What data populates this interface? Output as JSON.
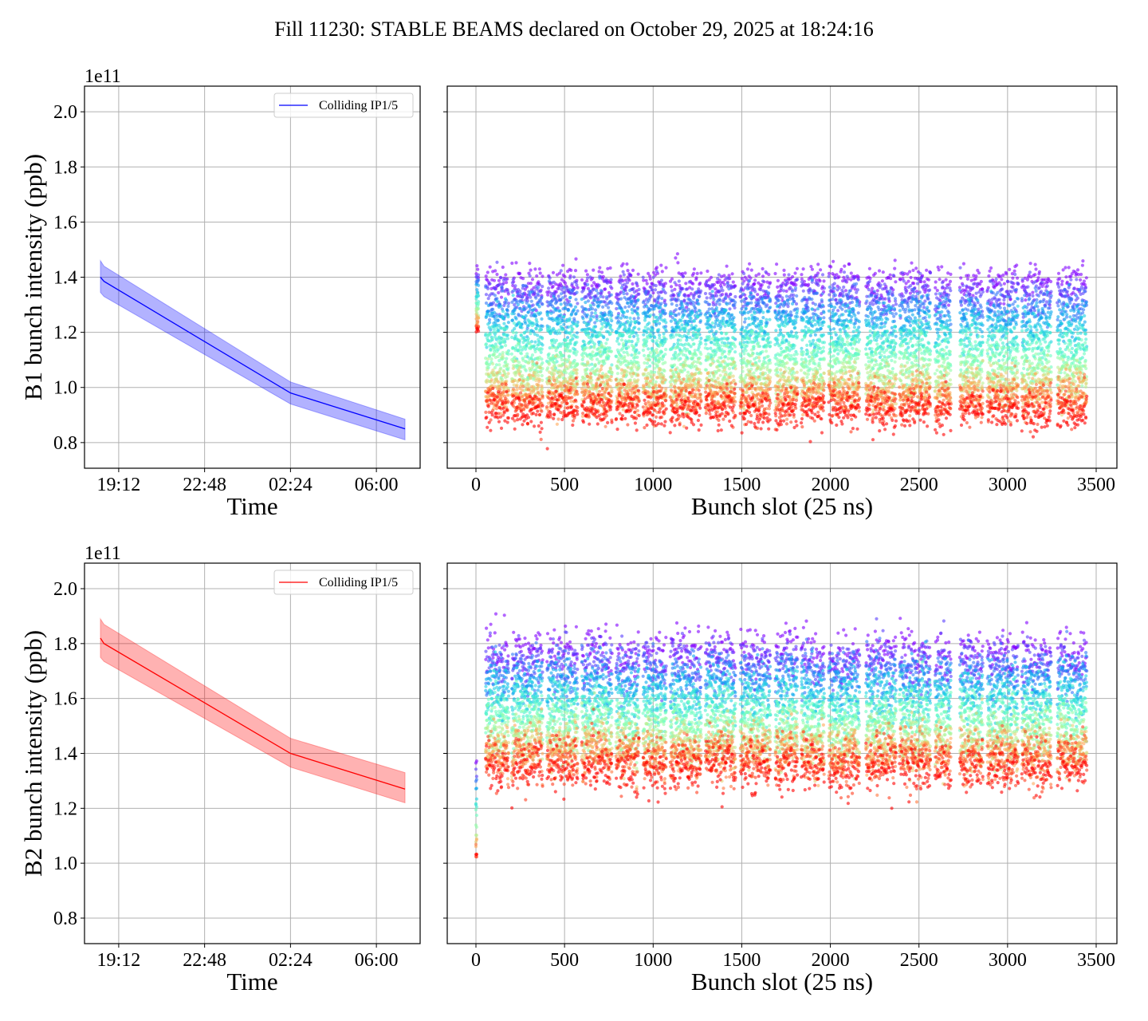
{
  "figure_title": "Fill 11230: STABLE BEAMS declared on October 29, 2025 at 18:24:16",
  "chart_data": [
    {
      "panel": "b1-time",
      "type": "line",
      "xlabel": "Time",
      "ylabel": "B1 bunch intensity (ppb)",
      "y_offset_label": "1e11",
      "xlim": [
        "17:46",
        "07:50"
      ],
      "ylim": [
        0.707,
        2.093
      ],
      "xticks": [
        "19:12",
        "22:48",
        "02:24",
        "06:00"
      ],
      "yticks": [
        0.8,
        1.0,
        1.2,
        1.4,
        1.6,
        1.8,
        2.0
      ],
      "grid": true,
      "legend": {
        "entries": [
          "Colliding IP1/5"
        ],
        "position": "upper right"
      },
      "series": [
        {
          "name": "Colliding IP1/5",
          "color": "#0000ff",
          "x": [
            "18:26",
            "18:35",
            "02:24",
            "07:12"
          ],
          "y": [
            1.4,
            1.385,
            0.98,
            0.85
          ],
          "band_upper": [
            1.46,
            1.44,
            1.02,
            0.885
          ],
          "band_lower": [
            1.345,
            1.33,
            0.94,
            0.81
          ]
        }
      ]
    },
    {
      "panel": "b1-slot",
      "type": "scatter",
      "xlabel": "Bunch slot (25 ns)",
      "xlim": [
        -162,
        3617
      ],
      "ylim": [
        0.707,
        2.093
      ],
      "xticks": [
        0,
        500,
        1000,
        1500,
        2000,
        2500,
        3000,
        3500
      ],
      "yticks": [
        0.8,
        1.0,
        1.2,
        1.4,
        1.6,
        1.8,
        2.0
      ],
      "show_ytick_labels": false,
      "grid": true,
      "colormap": "rainbow",
      "pilot": {
        "slots": [
          2,
          16
        ],
        "intensity_start": 1.42,
        "intensity_end": 1.21
      },
      "trains": [
        [
          54,
          185
        ],
        [
          202,
          377
        ],
        [
          400,
          575
        ],
        [
          597,
          768
        ],
        [
          790,
          921
        ],
        [
          943,
          1074
        ],
        [
          1096,
          1271
        ],
        [
          1294,
          1464
        ],
        [
          1491,
          1662
        ],
        [
          1688,
          1815
        ],
        [
          1835,
          1965
        ],
        [
          1990,
          2165
        ],
        [
          2200,
          2370
        ],
        [
          2390,
          2565
        ],
        [
          2590,
          2680
        ],
        [
          2730,
          2860
        ],
        [
          2885,
          3060
        ],
        [
          3080,
          3245
        ],
        [
          3280,
          3445
        ]
      ],
      "intensity_start": 1.38,
      "intensity_end": 0.915,
      "spread": 0.035
    },
    {
      "panel": "b2-time",
      "type": "line",
      "xlabel": "Time",
      "ylabel": "B2 bunch intensity (ppb)",
      "y_offset_label": "1e11",
      "xlim": [
        "17:46",
        "07:50"
      ],
      "ylim": [
        0.707,
        2.093
      ],
      "xticks": [
        "19:12",
        "22:48",
        "02:24",
        "06:00"
      ],
      "yticks": [
        0.8,
        1.0,
        1.2,
        1.4,
        1.6,
        1.8,
        2.0
      ],
      "grid": true,
      "legend": {
        "entries": [
          "Colliding IP1/5"
        ],
        "position": "upper right"
      },
      "series": [
        {
          "name": "Colliding IP1/5",
          "color": "#ff0000",
          "x": [
            "18:26",
            "18:35",
            "02:24",
            "07:12"
          ],
          "y": [
            1.82,
            1.8,
            1.4,
            1.27
          ],
          "band_upper": [
            1.89,
            1.87,
            1.455,
            1.33
          ],
          "band_lower": [
            1.75,
            1.735,
            1.35,
            1.22
          ]
        }
      ]
    },
    {
      "panel": "b2-slot",
      "type": "scatter",
      "xlabel": "Bunch slot (25 ns)",
      "xlim": [
        -162,
        3617
      ],
      "ylim": [
        0.707,
        2.093
      ],
      "xticks": [
        0,
        500,
        1000,
        1500,
        2000,
        2500,
        3000,
        3500
      ],
      "yticks": [
        0.8,
        1.0,
        1.2,
        1.4,
        1.6,
        1.8,
        2.0
      ],
      "show_ytick_labels": false,
      "grid": true,
      "colormap": "rainbow",
      "pilot": {
        "slots": [
          0,
          6
        ],
        "intensity_start": 1.37,
        "intensity_end": 1.02
      },
      "trains": [
        [
          54,
          185
        ],
        [
          202,
          377
        ],
        [
          400,
          575
        ],
        [
          597,
          768
        ],
        [
          790,
          921
        ],
        [
          943,
          1074
        ],
        [
          1096,
          1271
        ],
        [
          1294,
          1464
        ],
        [
          1491,
          1662
        ],
        [
          1688,
          1815
        ],
        [
          1835,
          1965
        ],
        [
          1990,
          2165
        ],
        [
          2200,
          2370
        ],
        [
          2390,
          2565
        ],
        [
          2590,
          2680
        ],
        [
          2730,
          2860
        ],
        [
          2885,
          3060
        ],
        [
          3080,
          3245
        ],
        [
          3280,
          3445
        ]
      ],
      "intensity_start": 1.77,
      "intensity_end": 1.345,
      "spread": 0.045
    }
  ]
}
